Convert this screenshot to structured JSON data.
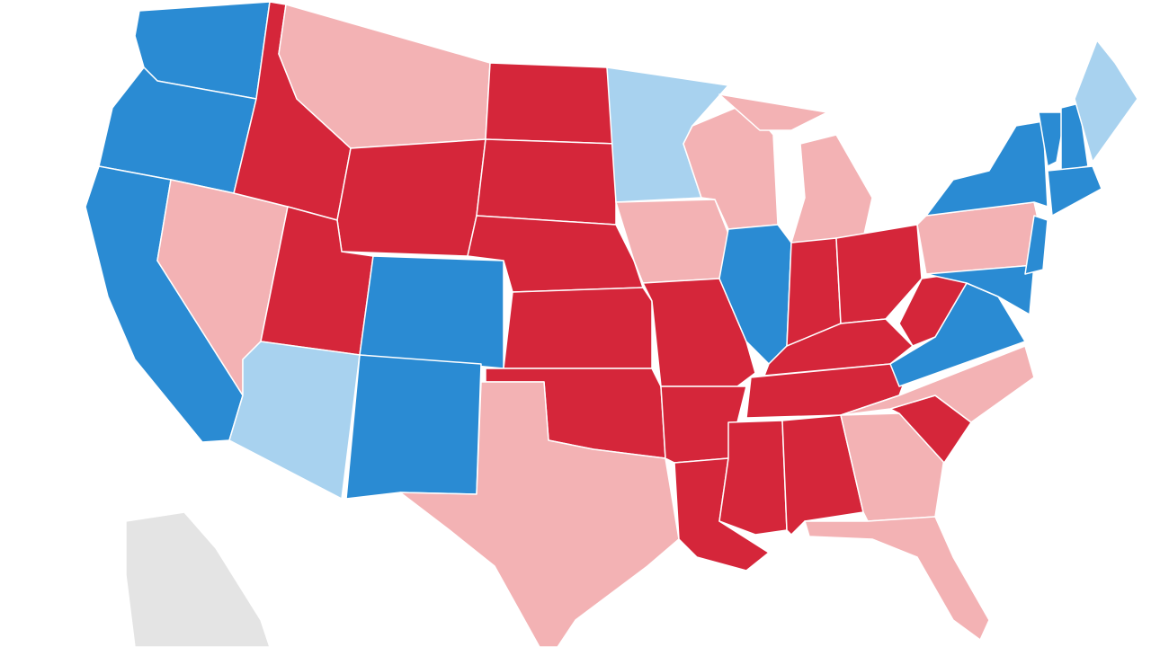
{
  "map": {
    "colors": {
      "dark_blue": "#2a8bd3",
      "light_blue": "#a8d2ef",
      "dark_red": "#d5263a",
      "light_red": "#f3b2b4",
      "no_data": "#e4e4e4"
    },
    "states": {
      "WA": "dark_blue",
      "OR": "dark_blue",
      "CA": "dark_blue",
      "CO": "dark_blue",
      "NM": "dark_blue",
      "IL": "dark_blue",
      "VA": "dark_blue",
      "NY": "dark_blue",
      "VT": "dark_blue",
      "NH": "dark_blue",
      "MA": "dark_blue",
      "NJ": "dark_blue",
      "MD": "dark_blue",
      "MN": "light_blue",
      "AZ": "light_blue",
      "ME": "light_blue",
      "ID": "dark_red",
      "WY": "dark_red",
      "UT": "dark_red",
      "ND": "dark_red",
      "SD": "dark_red",
      "NE": "dark_red",
      "KS": "dark_red",
      "OK": "dark_red",
      "MO": "dark_red",
      "AR": "dark_red",
      "LA": "dark_red",
      "MS": "dark_red",
      "AL": "dark_red",
      "TN": "dark_red",
      "KY": "dark_red",
      "IN": "dark_red",
      "OH": "dark_red",
      "WV": "dark_red",
      "SC": "dark_red",
      "MT": "light_red",
      "NV": "light_red",
      "TX": "light_red",
      "IA": "light_red",
      "WI": "light_red",
      "MI": "light_red",
      "PA": "light_red",
      "NC": "light_red",
      "GA": "light_red",
      "FL": "light_red",
      "AK": "no_data"
    }
  }
}
